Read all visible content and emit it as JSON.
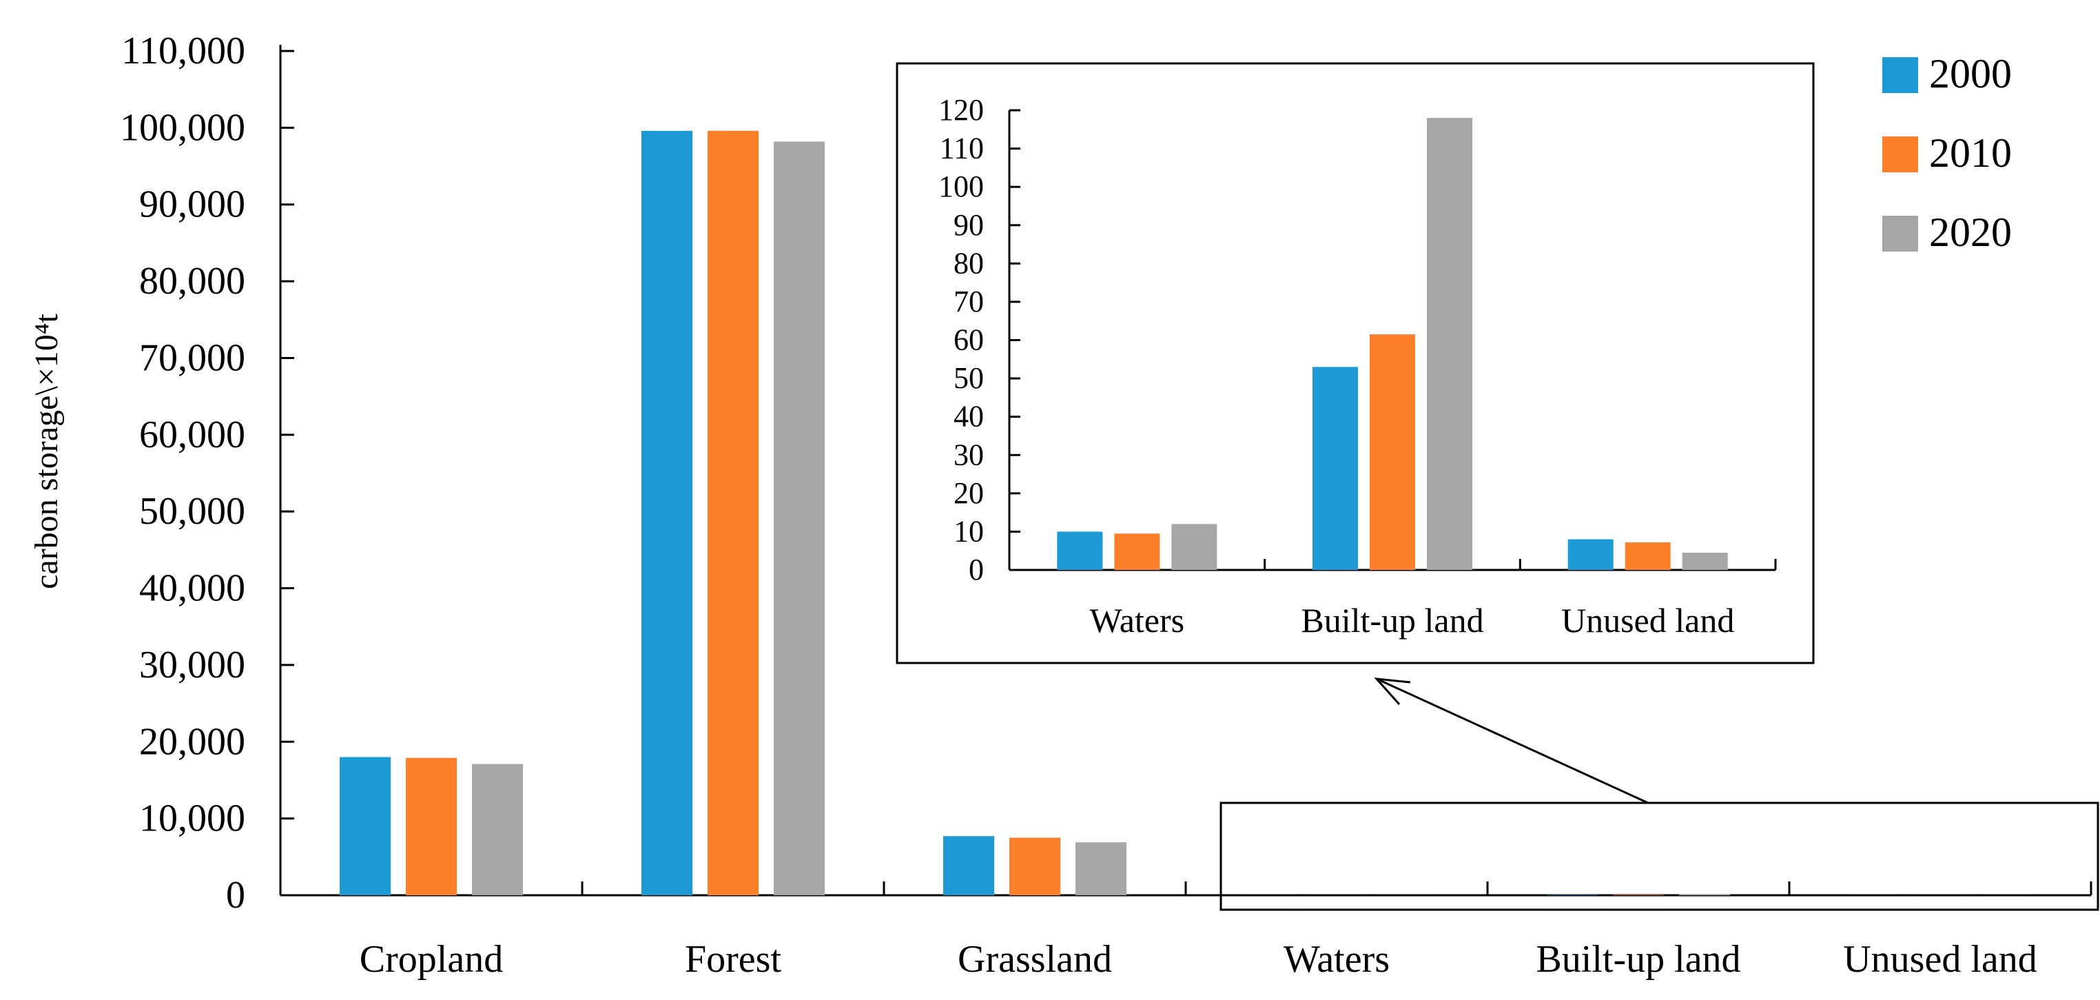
{
  "chart_data": [
    {
      "type": "bar",
      "ylabel": "carbon storage\\×10⁴t",
      "categories": [
        "Cropland",
        "Forest",
        "Grassland",
        "Waters",
        "Built-up land",
        "Unused land"
      ],
      "y_ticks": [
        "0",
        "10,000",
        "20,000",
        "30,000",
        "40,000",
        "50,000",
        "60,000",
        "70,000",
        "80,000",
        "90,000",
        "100,000",
        "110,000"
      ],
      "ylim": [
        0,
        110000
      ],
      "series": [
        {
          "name": "2000",
          "color": "#1b9ad6",
          "values": [
            18000,
            99600,
            7700,
            10,
            53,
            8
          ]
        },
        {
          "name": "2010",
          "color": "#fd7f2a",
          "values": [
            17900,
            99600,
            7500,
            9.5,
            61.5,
            7.2
          ]
        },
        {
          "name": "2020",
          "color": "#a6a6a6",
          "values": [
            17100,
            98200,
            6900,
            12,
            118,
            4.5
          ]
        }
      ],
      "legend": [
        "2000",
        "2010",
        "2020"
      ]
    },
    {
      "type": "bar",
      "role": "inset zoom",
      "categories": [
        "Waters",
        "Built-up land",
        "Unused land"
      ],
      "y_ticks": [
        "0",
        "10",
        "20",
        "30",
        "40",
        "50",
        "60",
        "70",
        "80",
        "90",
        "100",
        "110",
        "120"
      ],
      "ylim": [
        0,
        120
      ],
      "series": [
        {
          "name": "2000",
          "color": "#1b9ad6",
          "values": [
            10,
            53,
            8
          ]
        },
        {
          "name": "2010",
          "color": "#fd7f2a",
          "values": [
            9.5,
            61.5,
            7.2
          ]
        },
        {
          "name": "2020",
          "color": "#a6a6a6",
          "values": [
            12,
            118,
            4.5
          ]
        }
      ]
    }
  ]
}
